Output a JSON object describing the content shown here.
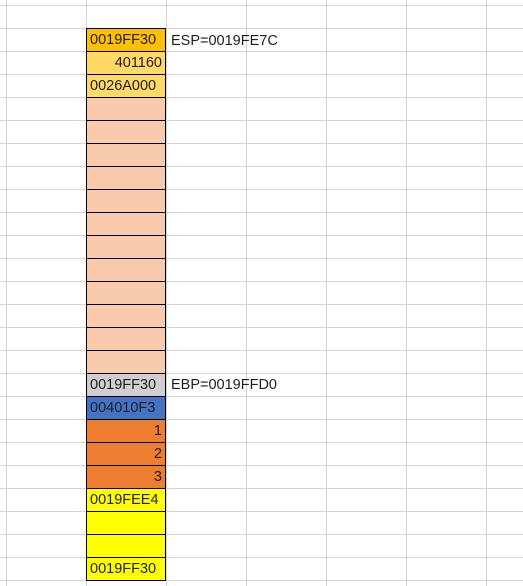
{
  "sheet": {
    "annotations": {
      "esp": "ESP=0019FE7C",
      "ebp": "EBP=0019FFD0"
    },
    "cells": [
      {
        "value": "0019FF30",
        "align": "text",
        "color": "#ffc000"
      },
      {
        "value": "401160",
        "align": "num",
        "color": "#ffd966"
      },
      {
        "value": "0026A000",
        "align": "text",
        "color": "#ffd966"
      },
      {
        "value": "",
        "align": "text",
        "color": "#f8cbad"
      },
      {
        "value": "",
        "align": "text",
        "color": "#f8cbad"
      },
      {
        "value": "",
        "align": "text",
        "color": "#f8cbad"
      },
      {
        "value": "",
        "align": "text",
        "color": "#f8cbad"
      },
      {
        "value": "",
        "align": "text",
        "color": "#f8cbad"
      },
      {
        "value": "",
        "align": "text",
        "color": "#f8cbad"
      },
      {
        "value": "",
        "align": "text",
        "color": "#f8cbad"
      },
      {
        "value": "",
        "align": "text",
        "color": "#f8cbad"
      },
      {
        "value": "",
        "align": "text",
        "color": "#f8cbad"
      },
      {
        "value": "",
        "align": "text",
        "color": "#f8cbad"
      },
      {
        "value": "",
        "align": "text",
        "color": "#f8cbad"
      },
      {
        "value": "",
        "align": "text",
        "color": "#f8cbad"
      },
      {
        "value": "0019FF30",
        "align": "text",
        "color": "#d0cece"
      },
      {
        "value": "004010F3",
        "align": "text",
        "color": "#4472c4"
      },
      {
        "value": "1",
        "align": "num",
        "color": "#ed7d31"
      },
      {
        "value": "2",
        "align": "num",
        "color": "#ed7d31"
      },
      {
        "value": "3",
        "align": "num",
        "color": "#ed7d31"
      },
      {
        "value": "0019FEE4",
        "align": "text",
        "color": "#ffff00"
      },
      {
        "value": "",
        "align": "text",
        "color": "#ffff00"
      },
      {
        "value": "",
        "align": "text",
        "color": "#ffff00"
      },
      {
        "value": "0019FF30",
        "align": "text",
        "color": "#ffff00"
      }
    ]
  }
}
